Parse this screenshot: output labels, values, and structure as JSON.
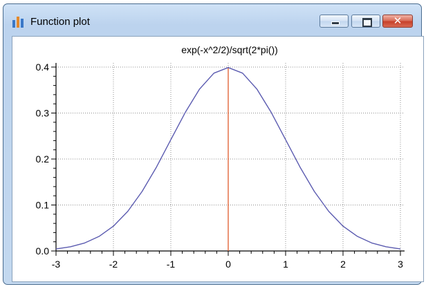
{
  "window": {
    "title": "Function plot",
    "icon": "bar-chart-icon",
    "controls": {
      "minimize": "minimize-icon",
      "maximize": "maximize-icon",
      "close": "close-icon"
    }
  },
  "colors": {
    "curve": "#5b5bb0",
    "marker": "#e05a2b",
    "grid": "#8c8c8c",
    "axis": "#000000"
  },
  "chart_data": {
    "type": "line",
    "title": "exp(-x^2/2)/sqrt(2*pi())",
    "xlabel": "",
    "ylabel": "",
    "xlim": [
      -3,
      3
    ],
    "ylim": [
      0,
      0.4
    ],
    "x_ticks": [
      "-3",
      "-2",
      "-1",
      "0",
      "1",
      "2",
      "3"
    ],
    "y_ticks": [
      "0.0",
      "0.1",
      "0.2",
      "0.3",
      "0.4"
    ],
    "grid": true,
    "legend": "none",
    "vertical_marker_x": 0,
    "series": [
      {
        "x": [
          -3,
          -2.75,
          -2.5,
          -2.25,
          -2,
          -1.75,
          -1.5,
          -1.25,
          -1,
          -0.75,
          -0.5,
          -0.25,
          0,
          0.25,
          0.5,
          0.75,
          1,
          1.25,
          1.5,
          1.75,
          2,
          2.25,
          2.5,
          2.75,
          3
        ],
        "y": [
          0.0044,
          0.0091,
          0.0175,
          0.0317,
          0.054,
          0.0863,
          0.1295,
          0.1826,
          0.242,
          0.3011,
          0.3521,
          0.3867,
          0.3989,
          0.3867,
          0.3521,
          0.3011,
          0.242,
          0.1826,
          0.1295,
          0.0863,
          0.054,
          0.0317,
          0.0175,
          0.0091,
          0.0044
        ]
      }
    ]
  }
}
